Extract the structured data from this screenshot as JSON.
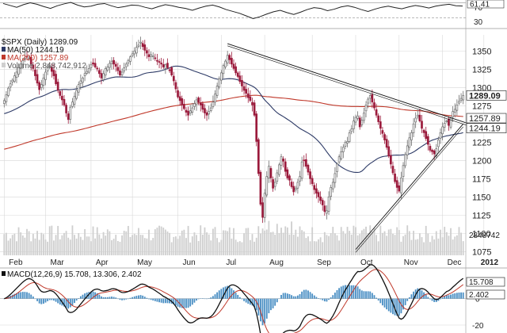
{
  "colors": {
    "up": "#6e6e6e",
    "down": "#9b1b3c",
    "ma50": "#2d3a66",
    "ma200": "#c0392b",
    "volume": "#cfcfcf",
    "volume_edge": "#b36b7b",
    "trendline": "#111111",
    "grid": "#d8d8d8",
    "rsi": "#222222",
    "macd": "#111111",
    "signal": "#c0392b",
    "hist": "#4a8fc4"
  },
  "chart_data": [
    {
      "panel": "rsi",
      "type": "line",
      "ticks": [
        "70",
        "30"
      ],
      "last_label": "61.41",
      "ylim": [
        10,
        90
      ],
      "levels": [
        70,
        30
      ],
      "values": [
        68,
        63,
        58,
        65,
        70,
        66,
        60,
        55,
        62,
        67,
        71,
        64,
        59,
        61,
        66,
        68,
        62,
        57,
        60,
        64,
        63,
        58,
        54,
        60,
        65,
        62,
        58,
        55,
        50,
        56,
        61,
        64,
        59,
        52,
        47,
        42,
        35,
        28,
        33,
        40,
        46,
        50,
        44,
        39,
        45,
        52,
        57,
        55,
        49,
        53,
        59,
        62,
        58,
        52,
        47,
        53,
        58,
        61,
        57,
        54,
        59,
        63,
        60,
        56,
        61,
        64,
        66,
        62,
        61.41
      ]
    },
    {
      "panel": "price",
      "type": "candlestick",
      "title": "$SPX (Daily) 1289.09",
      "legend": [
        "MA(50) 1244.19",
        "MA(200) 1257.89",
        "Volume 2,848,742,912"
      ],
      "months": [
        "Feb",
        "Mar",
        "Apr",
        "May",
        "Jun",
        "Jul",
        "Aug",
        "Sep",
        "Oct",
        "Nov",
        "Dec",
        "2012"
      ],
      "month_start_index": [
        0,
        20,
        42,
        62,
        84,
        105,
        126,
        149,
        170,
        191,
        212,
        232
      ],
      "yticks": [
        1075,
        1100,
        1125,
        1150,
        1175,
        1200,
        1225,
        1250,
        1275,
        1300,
        1325,
        1350
      ],
      "ylim": [
        1070,
        1372
      ],
      "last_price_label": "1289.09",
      "ma200_label": "1257.89",
      "ma50_label": "1244.19",
      "volume_label": "2848742",
      "closes": [
        1282,
        1290,
        1299,
        1305,
        1310,
        1316,
        1321,
        1327,
        1332,
        1337,
        1340,
        1342,
        1340,
        1332,
        1326,
        1316,
        1306,
        1297,
        1304,
        1313,
        1321,
        1327,
        1330,
        1322,
        1316,
        1305,
        1296,
        1289,
        1283,
        1276,
        1265,
        1256,
        1273,
        1280,
        1288,
        1296,
        1304,
        1309,
        1313,
        1319,
        1322,
        1326,
        1331,
        1332,
        1328,
        1326,
        1319,
        1313,
        1319,
        1326,
        1328,
        1333,
        1336,
        1332,
        1329,
        1323,
        1317,
        1321,
        1327,
        1332,
        1337,
        1342,
        1346,
        1350,
        1355,
        1358,
        1362,
        1356,
        1351,
        1347,
        1342,
        1345,
        1343,
        1340,
        1337,
        1335,
        1332,
        1328,
        1331,
        1327,
        1324,
        1317,
        1309,
        1298,
        1287,
        1282,
        1276,
        1271,
        1266,
        1262,
        1268,
        1272,
        1278,
        1283,
        1280,
        1276,
        1270,
        1265,
        1262,
        1267,
        1272,
        1280,
        1291,
        1302,
        1312,
        1320,
        1330,
        1336,
        1344,
        1338,
        1332,
        1326,
        1320,
        1315,
        1308,
        1302,
        1296,
        1292,
        1286,
        1282,
        1276,
        1262,
        1226,
        1182,
        1140,
        1122,
        1155,
        1178,
        1192,
        1176,
        1162,
        1170,
        1183,
        1194,
        1205,
        1199,
        1185,
        1176,
        1173,
        1164,
        1157,
        1162,
        1170,
        1178,
        1198,
        1200,
        1192,
        1184,
        1175,
        1168,
        1160,
        1155,
        1150,
        1145,
        1139,
        1130,
        1131,
        1150,
        1163,
        1170,
        1182,
        1195,
        1205,
        1212,
        1218,
        1225,
        1226,
        1238,
        1243,
        1254,
        1259,
        1261,
        1246,
        1255,
        1265,
        1276,
        1284,
        1289,
        1280,
        1272,
        1262,
        1253,
        1244,
        1237,
        1228,
        1218,
        1206,
        1195,
        1183,
        1171,
        1163,
        1158,
        1176,
        1193,
        1208,
        1220,
        1231,
        1238,
        1250,
        1258,
        1262,
        1254,
        1244,
        1238,
        1230,
        1222,
        1214,
        1212,
        1209,
        1216,
        1228,
        1238,
        1246,
        1251,
        1254,
        1248,
        1258,
        1267,
        1270,
        1276,
        1281,
        1285,
        1289.09
      ]
    },
    {
      "panel": "macd",
      "type": "line",
      "title": "MACD(12,26,9) 15.708, 13.306, 2.402",
      "yticks": [
        "0",
        "-20"
      ],
      "ylim": [
        -26,
        22
      ],
      "macd_label": "15.708",
      "hist_label": "2.402"
    }
  ]
}
